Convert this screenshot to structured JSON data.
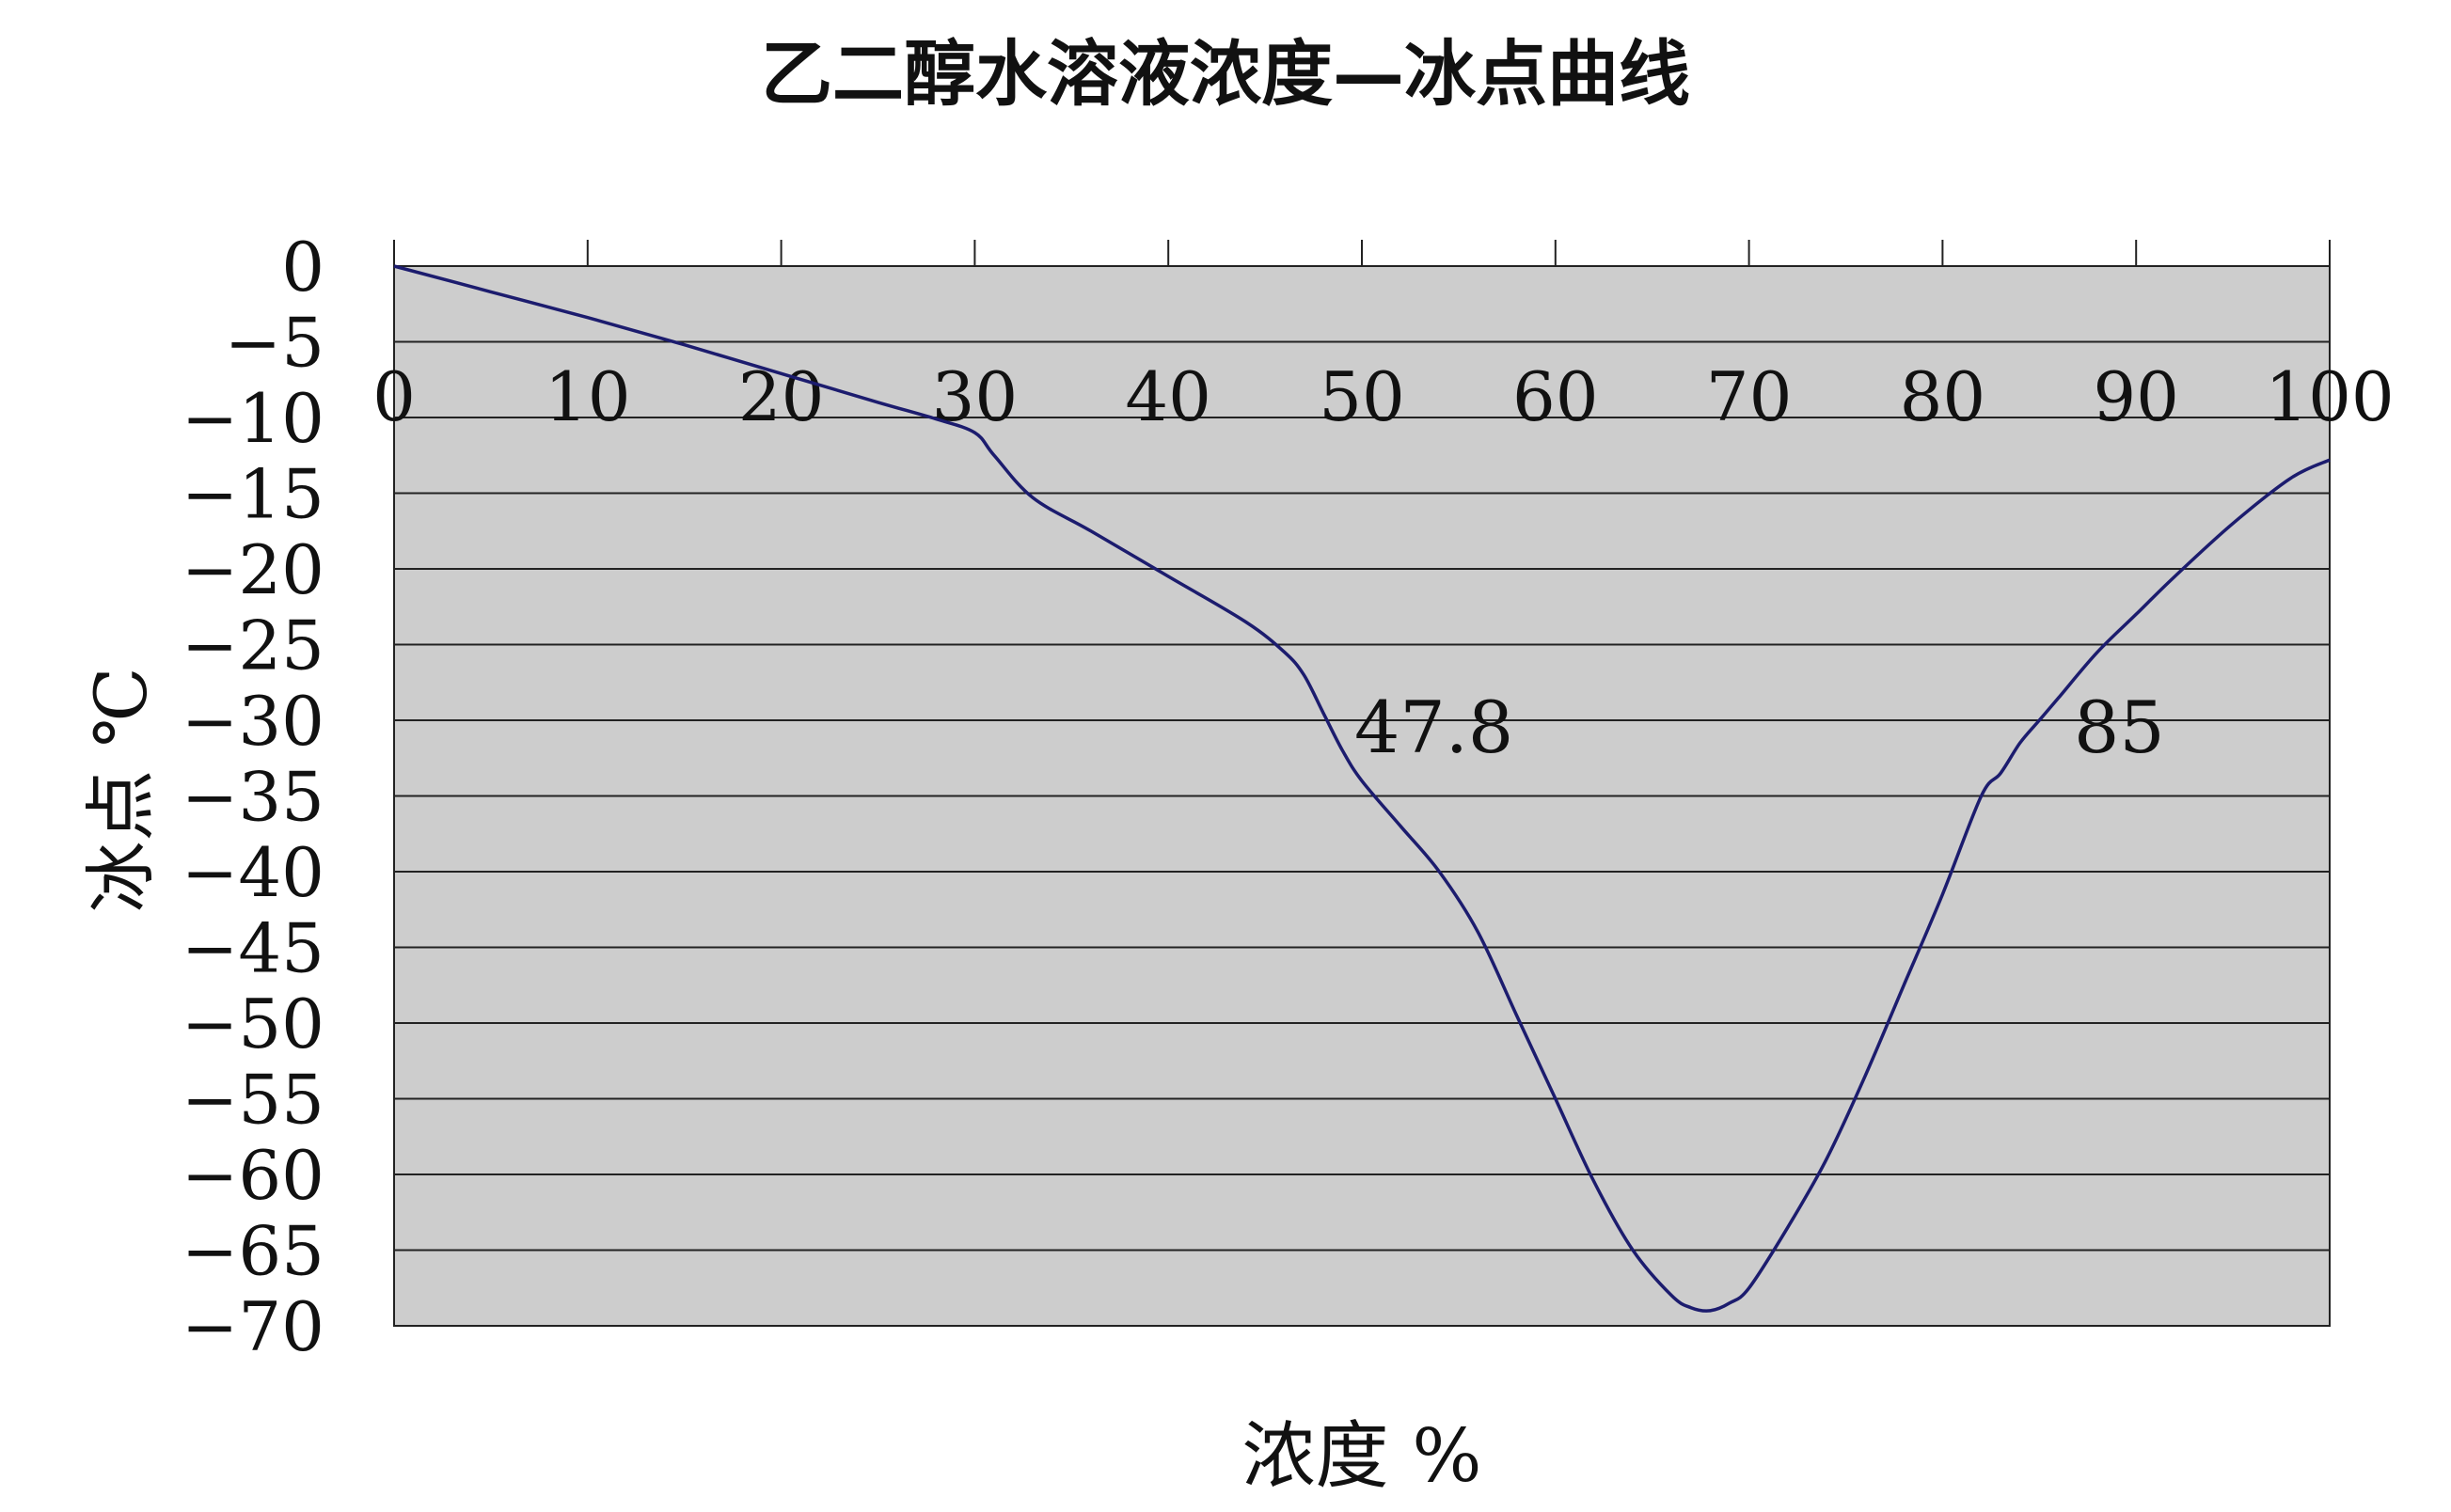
{
  "chart_data": {
    "type": "line",
    "title": "乙二醇水溶液浓度—冰点曲线",
    "xlabel": "浓度 %",
    "ylabel": "冰点 ℃",
    "xlim": [
      0,
      100
    ],
    "ylim": [
      -70,
      0
    ],
    "x_ticks": [
      0,
      10,
      20,
      30,
      40,
      50,
      60,
      70,
      80,
      90,
      100
    ],
    "y_ticks": [
      0,
      -5,
      -10,
      -15,
      -20,
      -25,
      -30,
      -35,
      -40,
      -45,
      -50,
      -55,
      -60,
      -65,
      -70
    ],
    "grid": "horizontal",
    "legend": "none",
    "colors": {
      "line": "#1c1c6e",
      "plot_background": "#cdcdcd",
      "grid": "#222222"
    },
    "series": [
      {
        "x": [
          0,
          5,
          10,
          15,
          20,
          25,
          28,
          30,
          31,
          33,
          36,
          40,
          44,
          46,
          47,
          48,
          49,
          50,
          52,
          54,
          56,
          58,
          60,
          62,
          64,
          66,
          67,
          68,
          69,
          70,
          72,
          74,
          76,
          78,
          80,
          82,
          83,
          84,
          85,
          86,
          88,
          90,
          92,
          95,
          98,
          100
        ],
        "y": [
          0,
          -1.7,
          -3.4,
          -5.2,
          -7.1,
          -9.0,
          -10.1,
          -11.0,
          -12.5,
          -15.3,
          -17.5,
          -20.5,
          -23.5,
          -25.5,
          -27.0,
          -29.5,
          -32.0,
          -34.0,
          -37.0,
          -40.0,
          -44.0,
          -49.5,
          -55.0,
          -60.5,
          -65.0,
          -68.0,
          -68.8,
          -69.0,
          -68.5,
          -67.5,
          -63.5,
          -59.0,
          -53.5,
          -47.5,
          -41.5,
          -35.0,
          -33.5,
          -31.5,
          -30.0,
          -28.5,
          -25.5,
          -23.0,
          -20.5,
          -17.0,
          -14.0,
          -12.8
        ]
      }
    ],
    "annotations": [
      "47.8",
      "85"
    ]
  }
}
